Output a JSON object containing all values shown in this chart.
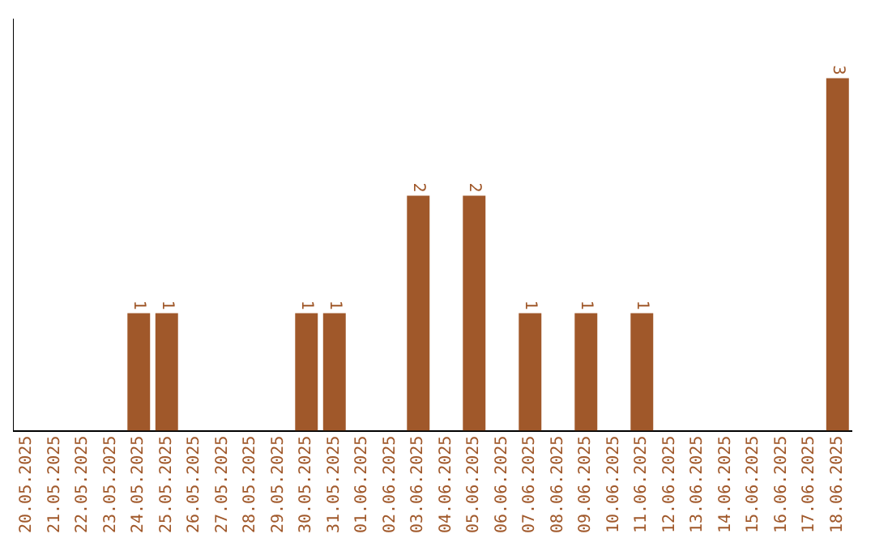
{
  "chart_data": {
    "type": "bar",
    "categories": [
      "20.05.2025",
      "21.05.2025",
      "22.05.2025",
      "23.05.2025",
      "24.05.2025",
      "25.05.2025",
      "26.05.2025",
      "27.05.2025",
      "28.05.2025",
      "29.05.2025",
      "30.05.2025",
      "31.05.2025",
      "01.06.2025",
      "02.06.2025",
      "03.06.2025",
      "04.06.2025",
      "05.06.2025",
      "06.06.2025",
      "07.06.2025",
      "08.06.2025",
      "09.06.2025",
      "10.06.2025",
      "11.06.2025",
      "12.06.2025",
      "13.06.2025",
      "14.06.2025",
      "15.06.2025",
      "16.06.2025",
      "17.06.2025",
      "18.06.2025"
    ],
    "values": [
      0,
      0,
      0,
      0,
      1,
      1,
      0,
      0,
      0,
      0,
      1,
      1,
      0,
      0,
      2,
      0,
      2,
      0,
      1,
      0,
      1,
      0,
      1,
      0,
      0,
      0,
      0,
      0,
      0,
      3
    ],
    "value_labels": [
      null,
      null,
      null,
      null,
      "1",
      "1",
      null,
      null,
      null,
      null,
      "1",
      "1",
      null,
      null,
      "2",
      null,
      "2",
      null,
      "1",
      null,
      "1",
      null,
      "1",
      null,
      null,
      null,
      null,
      null,
      null,
      "3"
    ],
    "color": "#a0582a",
    "grid": false,
    "legend": false,
    "tick_labels": "x"
  }
}
